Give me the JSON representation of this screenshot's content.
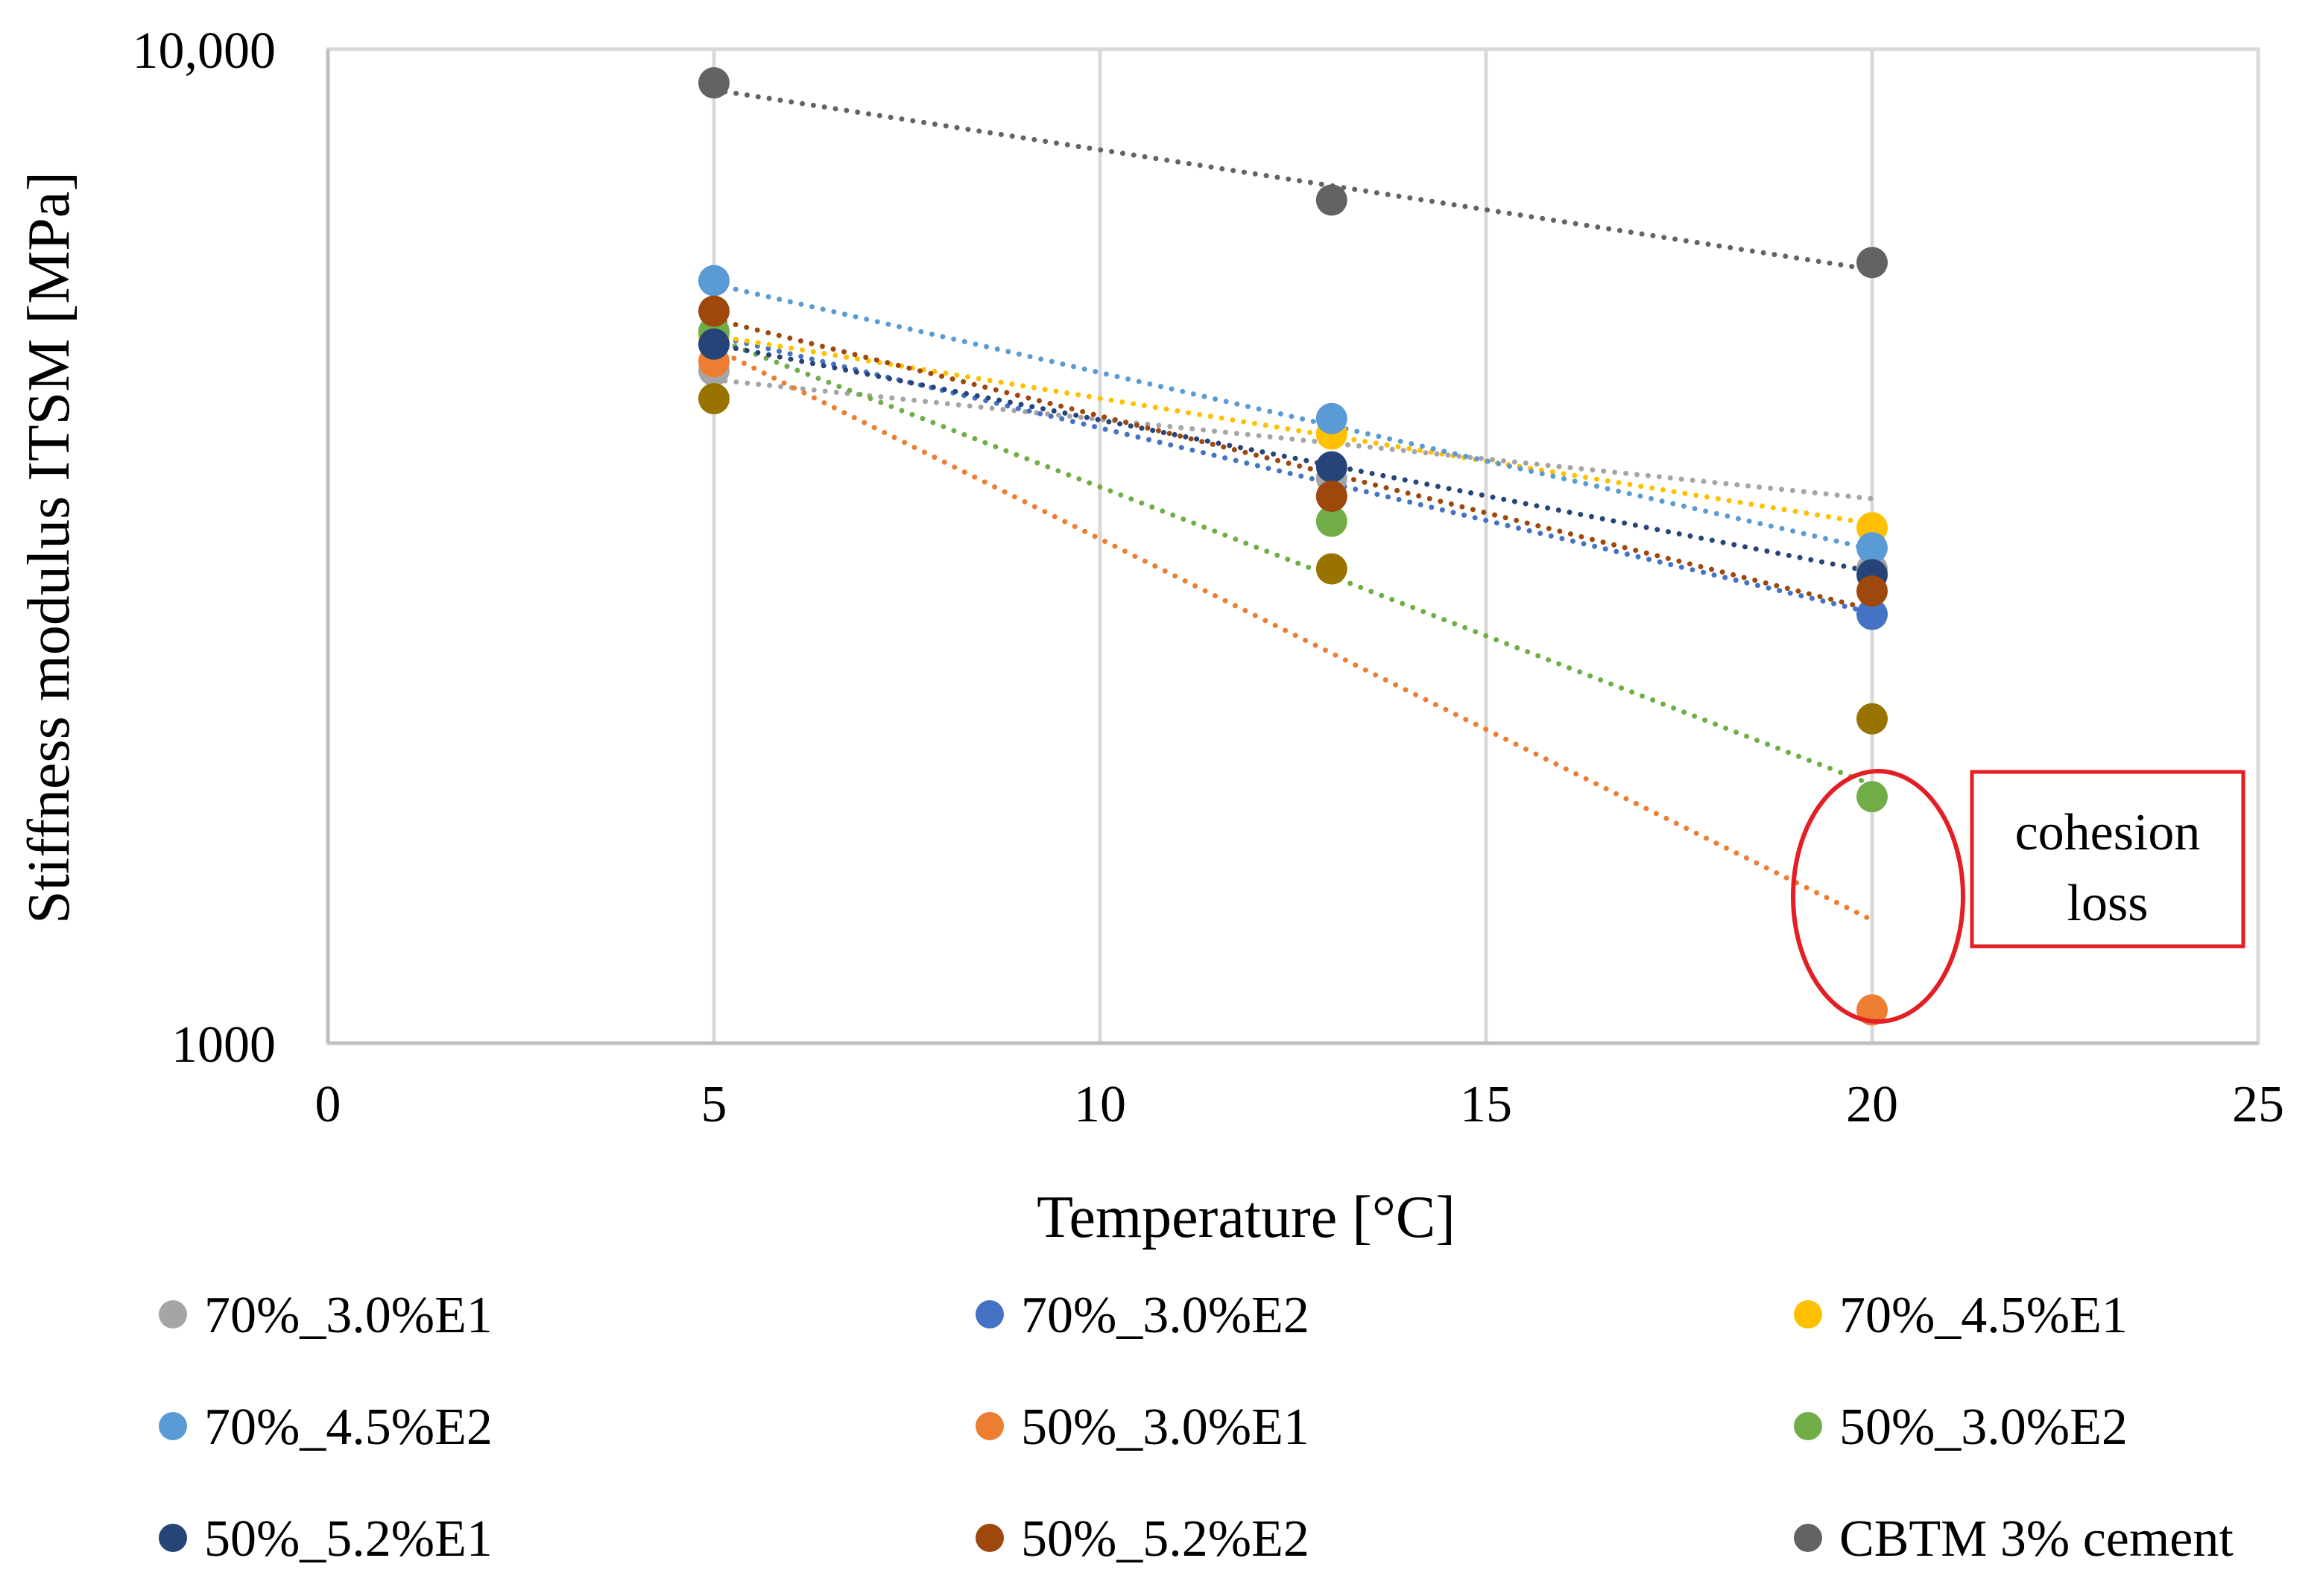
{
  "chart_data": {
    "type": "scatter",
    "title": "",
    "xlabel": "Temperature [°C]",
    "ylabel": "Stiffness modulus ITSM [MPa]",
    "xlim": [
      0,
      25
    ],
    "ylim": [
      1000,
      10000
    ],
    "yscale": "log",
    "x_ticks": [
      0,
      5,
      10,
      15,
      20,
      25
    ],
    "x_tick_labels": [
      "0",
      "5",
      "10",
      "15",
      "20",
      "25"
    ],
    "y_ticks": [
      1000,
      10000
    ],
    "y_tick_labels": [
      "1000",
      "10,000"
    ],
    "grid": "vertical",
    "trendline": "exponential, dotted",
    "legend_position": "bottom",
    "series": [
      {
        "name": "70%_3.0%E1",
        "color": "#A5A5A5",
        "x": [
          5,
          13,
          20
        ],
        "y": [
          4750,
          3700,
          3000
        ],
        "trend": [
          4650,
          3530
        ]
      },
      {
        "name": "70%_3.0%E2",
        "color": "#4472C4",
        "x": [
          5,
          13,
          20
        ],
        "y": [
          5050,
          3550,
          2700
        ],
        "trend": [
          5150,
          2710
        ]
      },
      {
        "name": "70%_4.5%E1",
        "color": "#FFC000",
        "x": [
          5,
          13,
          20
        ],
        "y": [
          5150,
          4100,
          3300
        ],
        "trend": [
          5150,
          3330
        ]
      },
      {
        "name": "70%_4.5%E2",
        "color": "#5B9BD5",
        "x": [
          5,
          13,
          20
        ],
        "y": [
          5850,
          4250,
          3150
        ],
        "trend": [
          5800,
          3140
        ]
      },
      {
        "name": "50%_3.0%E1",
        "color": "#ED7D31",
        "x": [
          5,
          13,
          20
        ],
        "y": [
          4850,
          null,
          1080
        ],
        "trend": [
          5000,
          1330
        ]
      },
      {
        "name": "50%_3.0%E2",
        "color": "#70AD47",
        "x": [
          5,
          13,
          20
        ],
        "y": [
          5200,
          3350,
          1770
        ],
        "trend": [
          5120,
          1820
        ]
      },
      {
        "name": "50%_5.2%E1",
        "color": "#264478",
        "x": [
          5,
          13,
          20
        ],
        "y": [
          5050,
          3800,
          2960
        ],
        "trend": [
          5050,
          2980
        ]
      },
      {
        "name": "50%_5.2%E2",
        "color": "#9E480E",
        "x": [
          5,
          13,
          20
        ],
        "y": [
          5450,
          3550,
          2850
        ],
        "trend": [
          5350,
          2730
        ]
      },
      {
        "name": "CBTM 3% cement",
        "color": "#636363",
        "x": [
          5,
          13,
          20
        ],
        "y": [
          9250,
          7050,
          6100
        ],
        "trend": [
          9100,
          6000
        ]
      },
      {
        "name": "",
        "color": "#997300",
        "x": [
          5,
          13,
          20
        ],
        "y": [
          4450,
          3000,
          2120
        ],
        "trend": null
      }
    ],
    "annotation": {
      "text": [
        "cohesion",
        "loss"
      ],
      "color": "#E31E24"
    }
  }
}
